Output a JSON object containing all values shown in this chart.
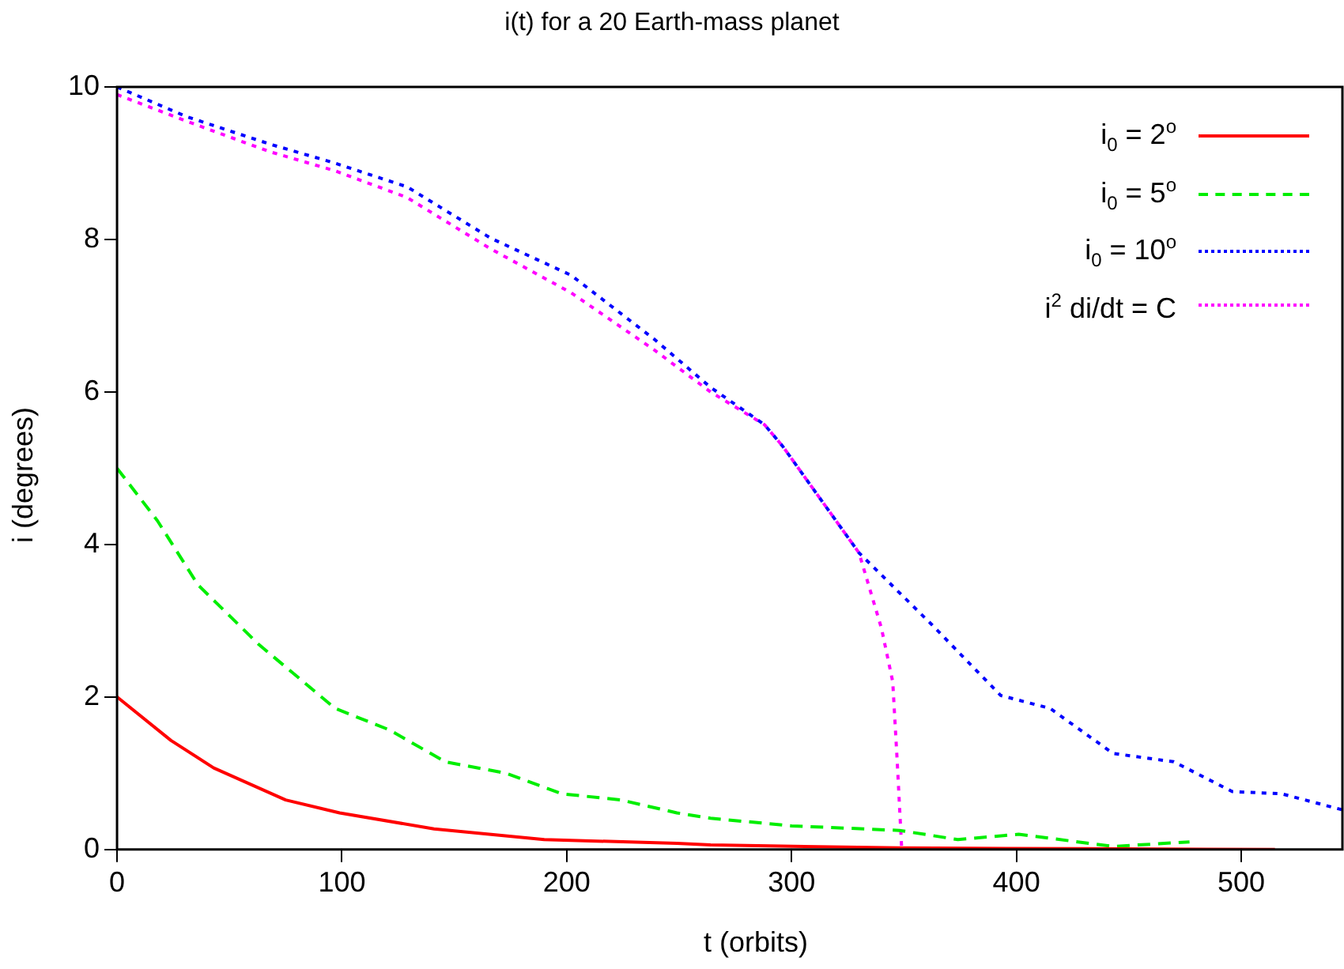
{
  "chart_data": {
    "type": "line",
    "title": "i(t) for a 20 Earth-mass planet",
    "xlabel": "t (orbits)",
    "ylabel": "i (degrees)",
    "xlim": [
      0,
      545
    ],
    "xticks": [
      0,
      100,
      200,
      300,
      400,
      500
    ],
    "ylim": [
      0,
      10
    ],
    "yticks": [
      0,
      2,
      4,
      6,
      8,
      10
    ],
    "legend": "top right",
    "marker": "none",
    "series": [
      {
        "name": "i$_{0}$ = 2$^{o}$",
        "color": "#ff0000",
        "line_style": "solid",
        "x": [
          0,
          24,
          43,
          75,
          99,
          141,
          190,
          249,
          264,
          348,
          430,
          515
        ],
        "values": [
          2.0,
          1.43,
          1.07,
          0.65,
          0.48,
          0.27,
          0.13,
          0.08,
          0.06,
          0.02,
          0.01,
          0.0
        ]
      },
      {
        "name": "i$_{0}$ = 5$^{o}$",
        "color": "#00ee00",
        "line_style": "dashed",
        "x": [
          0,
          18,
          36,
          63,
          97,
          121,
          146,
          173,
          198,
          224,
          249,
          264,
          300,
          348,
          374,
          401,
          443,
          477
        ],
        "values": [
          5.0,
          4.31,
          3.47,
          2.69,
          1.85,
          1.57,
          1.15,
          1.0,
          0.73,
          0.65,
          0.48,
          0.41,
          0.31,
          0.25,
          0.13,
          0.2,
          0.04,
          0.1
        ]
      },
      {
        "name": "i$_{0}$ = 10$^{o}$",
        "color": "#0000ff",
        "line_style": "dotted",
        "x": [
          0,
          31,
          68,
          97,
          129,
          166,
          202,
          239,
          264,
          288,
          296,
          330,
          362,
          393,
          415,
          443,
          470,
          496,
          518,
          545
        ],
        "values": [
          10.0,
          9.61,
          9.25,
          9.0,
          8.69,
          8.02,
          7.53,
          6.69,
          6.06,
          5.57,
          5.29,
          3.89,
          2.96,
          2.02,
          1.85,
          1.26,
          1.15,
          0.76,
          0.73,
          0.52
        ]
      },
      {
        "name": "i$^{2}$ di/dt = C",
        "color": "#ff00ff",
        "line_style": "dotted",
        "x": [
          0,
          31,
          68,
          97,
          129,
          166,
          202,
          239,
          264,
          288,
          296,
          330,
          340,
          345,
          347,
          349
        ],
        "values": [
          9.9,
          9.55,
          9.15,
          8.9,
          8.55,
          7.88,
          7.3,
          6.55,
          6.0,
          5.57,
          5.29,
          3.89,
          2.9,
          2.2,
          1.15,
          0.0
        ]
      }
    ]
  }
}
